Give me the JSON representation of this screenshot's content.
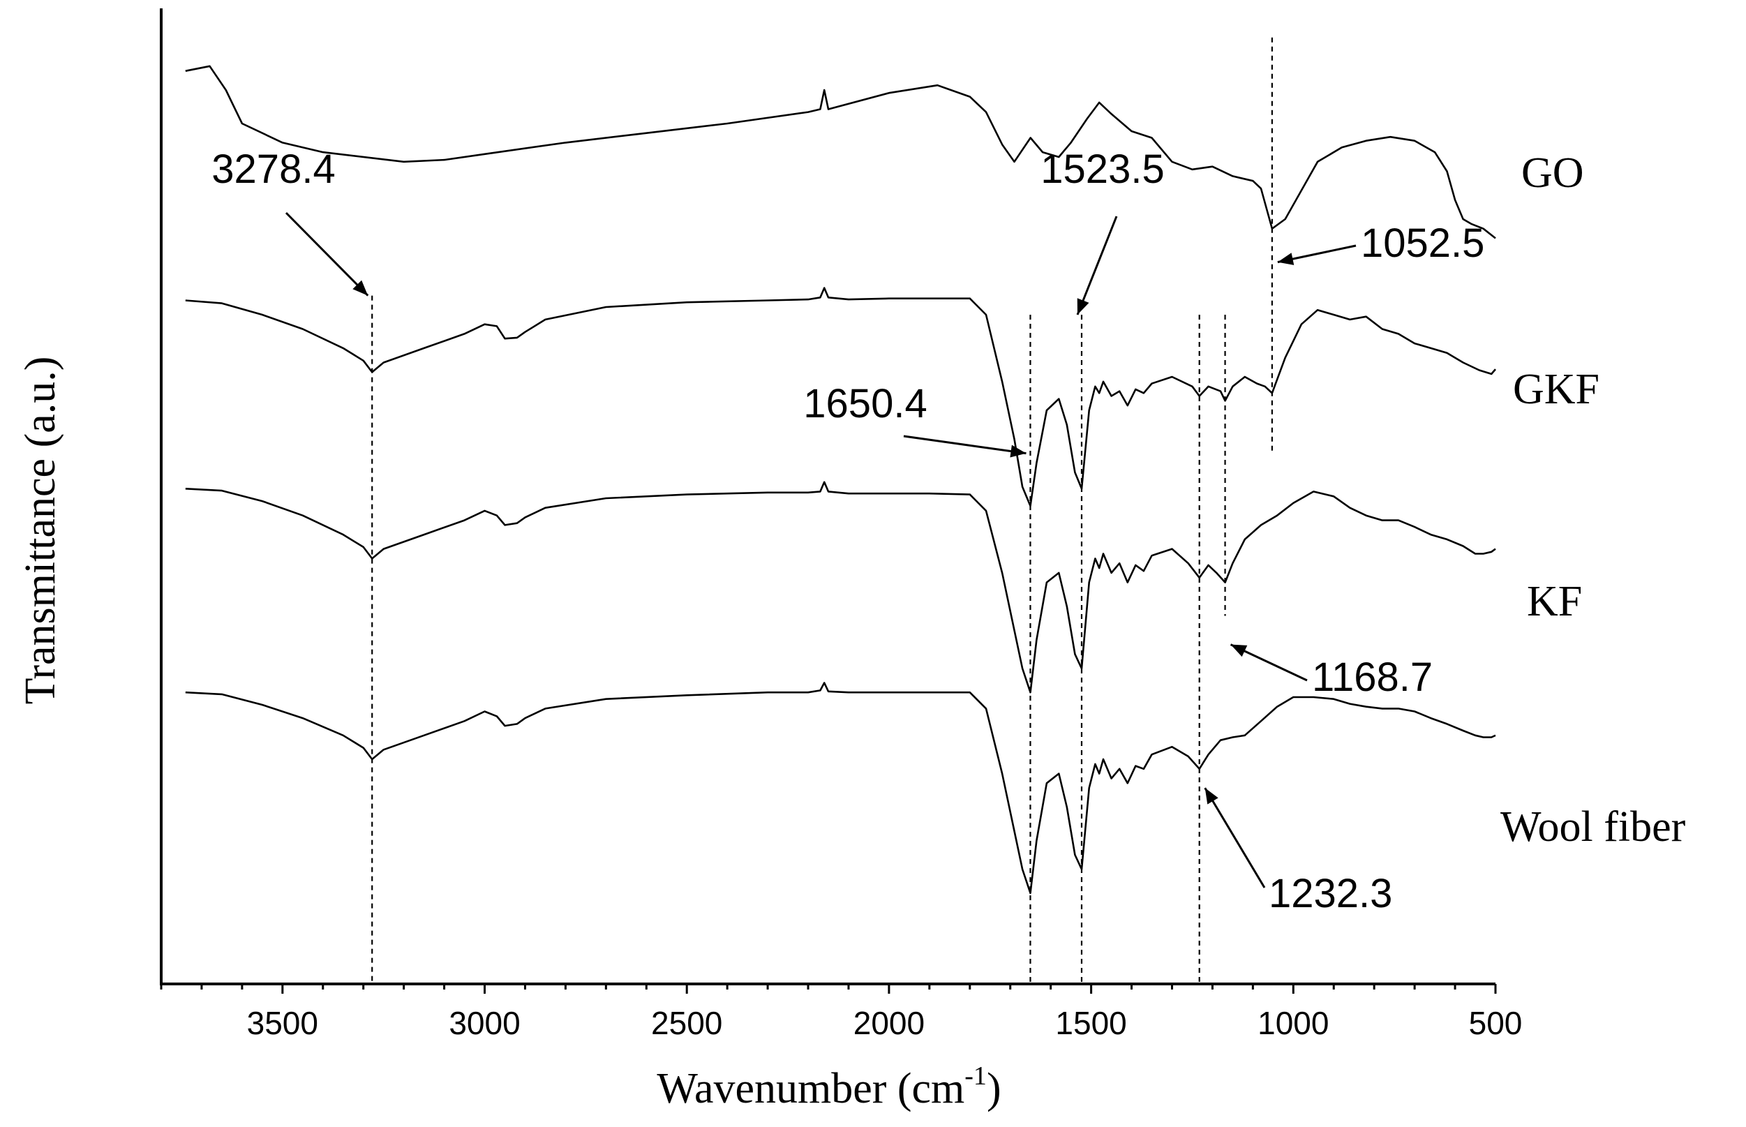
{
  "chart_data": {
    "type": "line",
    "title": "",
    "xlabel": "Wavenumber (cm",
    "xlabel_sup": "-1",
    "xlabel_close": ")",
    "ylabel": "Transmittance (a.u.)",
    "xlim": [
      3800,
      500
    ],
    "x_ticks": [
      3500,
      3000,
      2500,
      2000,
      1500,
      1000,
      500
    ],
    "x_tick_labels": [
      "3500",
      "3000",
      "2500",
      "2000",
      "1500",
      "1000",
      "500"
    ],
    "y_ticks_shown": false,
    "series": [
      {
        "name": "GO",
        "x": [
          3740,
          3680,
          3640,
          3600,
          3500,
          3400,
          3200,
          3100,
          3000,
          2800,
          2600,
          2400,
          2200,
          2170,
          2160,
          2150,
          2000,
          1880,
          1800,
          1760,
          1720,
          1690,
          1650,
          1620,
          1580,
          1550,
          1510,
          1480,
          1450,
          1400,
          1350,
          1300,
          1250,
          1200,
          1150,
          1100,
          1080,
          1052.5,
          1020,
          980,
          940,
          880,
          820,
          760,
          700,
          650,
          620,
          600,
          580,
          560,
          530,
          500
        ],
        "values": [
          0.955,
          0.96,
          0.935,
          0.9,
          0.88,
          0.87,
          0.86,
          0.862,
          0.868,
          0.88,
          0.89,
          0.9,
          0.912,
          0.915,
          0.935,
          0.915,
          0.932,
          0.94,
          0.928,
          0.912,
          0.878,
          0.86,
          0.885,
          0.87,
          0.865,
          0.88,
          0.905,
          0.922,
          0.91,
          0.892,
          0.885,
          0.86,
          0.852,
          0.855,
          0.845,
          0.84,
          0.832,
          0.79,
          0.8,
          0.83,
          0.86,
          0.875,
          0.882,
          0.886,
          0.882,
          0.87,
          0.85,
          0.82,
          0.8,
          0.795,
          0.79,
          0.78
        ]
      },
      {
        "name": "GKF",
        "x": [
          3740,
          3650,
          3550,
          3450,
          3350,
          3300,
          3278.4,
          3250,
          3150,
          3050,
          3000,
          2970,
          2950,
          2920,
          2900,
          2850,
          2700,
          2500,
          2300,
          2200,
          2170,
          2160,
          2150,
          2100,
          2000,
          1900,
          1800,
          1760,
          1720,
          1690,
          1670,
          1650.4,
          1635,
          1610,
          1580,
          1560,
          1540,
          1523.5,
          1505,
          1490,
          1480,
          1470,
          1450,
          1430,
          1410,
          1390,
          1370,
          1350,
          1300,
          1250,
          1232.3,
          1210,
          1180,
          1168.7,
          1150,
          1120,
          1090,
          1070,
          1052.5,
          1020,
          980,
          940,
          900,
          860,
          820,
          780,
          740,
          700,
          660,
          620,
          580,
          540,
          510,
          500
        ],
        "values": [
          0.715,
          0.712,
          0.7,
          0.685,
          0.665,
          0.652,
          0.64,
          0.65,
          0.665,
          0.68,
          0.69,
          0.688,
          0.675,
          0.676,
          0.682,
          0.695,
          0.708,
          0.713,
          0.715,
          0.716,
          0.718,
          0.728,
          0.718,
          0.716,
          0.717,
          0.717,
          0.717,
          0.7,
          0.63,
          0.57,
          0.52,
          0.5,
          0.545,
          0.6,
          0.612,
          0.585,
          0.535,
          0.518,
          0.6,
          0.625,
          0.618,
          0.63,
          0.615,
          0.62,
          0.605,
          0.622,
          0.618,
          0.628,
          0.635,
          0.625,
          0.615,
          0.625,
          0.62,
          0.61,
          0.625,
          0.635,
          0.628,
          0.625,
          0.618,
          0.655,
          0.69,
          0.705,
          0.7,
          0.695,
          0.698,
          0.685,
          0.68,
          0.67,
          0.665,
          0.66,
          0.65,
          0.642,
          0.638,
          0.643
        ]
      },
      {
        "name": "KF",
        "x": [
          3740,
          3650,
          3550,
          3450,
          3350,
          3300,
          3278.4,
          3250,
          3150,
          3050,
          3000,
          2970,
          2950,
          2920,
          2900,
          2850,
          2700,
          2500,
          2300,
          2200,
          2170,
          2160,
          2150,
          2100,
          2000,
          1900,
          1800,
          1760,
          1720,
          1690,
          1670,
          1650.4,
          1635,
          1610,
          1580,
          1560,
          1540,
          1523.5,
          1505,
          1490,
          1480,
          1470,
          1450,
          1430,
          1410,
          1390,
          1370,
          1350,
          1300,
          1260,
          1232.3,
          1210,
          1190,
          1168.7,
          1150,
          1120,
          1080,
          1040,
          1000,
          950,
          900,
          860,
          820,
          780,
          740,
          700,
          660,
          620,
          580,
          550,
          530,
          510,
          500
        ],
        "values": [
          0.518,
          0.516,
          0.505,
          0.49,
          0.47,
          0.457,
          0.445,
          0.455,
          0.47,
          0.485,
          0.495,
          0.49,
          0.48,
          0.482,
          0.488,
          0.498,
          0.508,
          0.512,
          0.514,
          0.514,
          0.515,
          0.525,
          0.515,
          0.513,
          0.513,
          0.513,
          0.512,
          0.495,
          0.43,
          0.37,
          0.33,
          0.305,
          0.36,
          0.42,
          0.43,
          0.395,
          0.345,
          0.33,
          0.42,
          0.445,
          0.435,
          0.45,
          0.43,
          0.44,
          0.42,
          0.438,
          0.432,
          0.448,
          0.455,
          0.44,
          0.425,
          0.438,
          0.43,
          0.42,
          0.44,
          0.465,
          0.48,
          0.49,
          0.503,
          0.515,
          0.51,
          0.498,
          0.49,
          0.485,
          0.485,
          0.478,
          0.47,
          0.465,
          0.458,
          0.45,
          0.45,
          0.452,
          0.455
        ]
      },
      {
        "name": "Wool fiber",
        "x": [
          3740,
          3650,
          3550,
          3450,
          3350,
          3300,
          3278.4,
          3250,
          3150,
          3050,
          3000,
          2970,
          2950,
          2920,
          2900,
          2850,
          2700,
          2500,
          2300,
          2200,
          2170,
          2160,
          2150,
          2100,
          2000,
          1900,
          1800,
          1760,
          1720,
          1690,
          1670,
          1650.4,
          1635,
          1610,
          1580,
          1560,
          1540,
          1523.5,
          1505,
          1490,
          1480,
          1470,
          1450,
          1430,
          1410,
          1390,
          1370,
          1350,
          1300,
          1260,
          1232.3,
          1210,
          1180,
          1150,
          1120,
          1080,
          1040,
          1000,
          950,
          900,
          860,
          820,
          780,
          740,
          700,
          660,
          620,
          580,
          550,
          530,
          510,
          500
        ],
        "values": [
          0.305,
          0.303,
          0.292,
          0.278,
          0.26,
          0.247,
          0.235,
          0.245,
          0.26,
          0.275,
          0.285,
          0.28,
          0.27,
          0.272,
          0.278,
          0.288,
          0.298,
          0.302,
          0.305,
          0.305,
          0.307,
          0.315,
          0.306,
          0.305,
          0.305,
          0.305,
          0.305,
          0.288,
          0.22,
          0.16,
          0.12,
          0.095,
          0.15,
          0.21,
          0.22,
          0.185,
          0.135,
          0.12,
          0.205,
          0.23,
          0.22,
          0.235,
          0.215,
          0.225,
          0.21,
          0.228,
          0.225,
          0.24,
          0.248,
          0.238,
          0.225,
          0.24,
          0.255,
          0.258,
          0.26,
          0.275,
          0.29,
          0.3,
          0.3,
          0.298,
          0.293,
          0.29,
          0.288,
          0.288,
          0.285,
          0.278,
          0.272,
          0.265,
          0.26,
          0.258,
          0.258,
          0.26
        ]
      }
    ],
    "guide_lines": [
      {
        "x": 3278.4,
        "y_top": 0.72,
        "y_bottom": 0.0
      },
      {
        "x": 1650.4,
        "y_top": 0.7,
        "y_bottom": 0.0
      },
      {
        "x": 1523.5,
        "y_top": 0.7,
        "y_bottom": 0.0
      },
      {
        "x": 1232.3,
        "y_top": 0.7,
        "y_bottom": 0.0
      },
      {
        "x": 1168.7,
        "y_top": 0.7,
        "y_bottom": 0.385
      },
      {
        "x": 1052.5,
        "y_top": 0.99,
        "y_bottom": 0.555
      }
    ],
    "annotations": [
      {
        "text": "3278.4",
        "x": 3278.4,
        "target_y": 0.72,
        "side": "upper-left"
      },
      {
        "text": "1523.5",
        "x": 1523.5,
        "target_y": 0.7,
        "side": "upper-right"
      },
      {
        "text": "1052.5",
        "x": 1052.5,
        "target_y": 0.755,
        "side": "right"
      },
      {
        "text": "1650.4",
        "x": 1650.4,
        "target_y": 0.555,
        "side": "upper-left"
      },
      {
        "text": "1168.7",
        "x": 1168.7,
        "target_y": 0.355,
        "side": "right"
      },
      {
        "text": "1232.3",
        "x": 1232.3,
        "target_y": 0.205,
        "side": "lower-right"
      }
    ]
  }
}
